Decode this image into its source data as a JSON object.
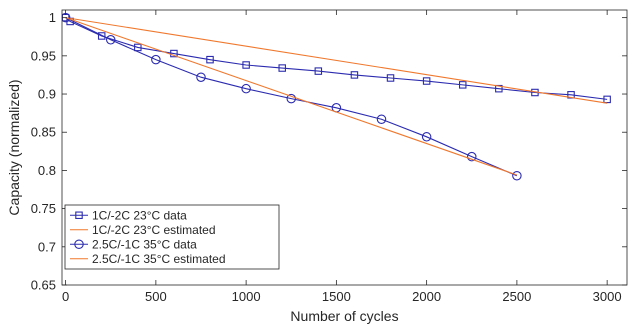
{
  "chart_data": {
    "type": "line",
    "title": "",
    "xlabel": "Number of cycles",
    "ylabel": "Capacity (normalized)",
    "xlim": [
      -20,
      3110
    ],
    "ylim": [
      0.65,
      1.01
    ],
    "xticks": [
      0,
      500,
      1000,
      1500,
      2000,
      2500,
      3000
    ],
    "yticks": [
      0.65,
      0.7,
      0.75,
      0.8,
      0.85,
      0.9,
      0.95,
      1
    ],
    "ytick_labels": [
      "0.65",
      "0.7",
      "0.75",
      "0.8",
      "0.85",
      "0.9",
      "0.95",
      "1"
    ],
    "grid": false,
    "legend_position": "bottom-left",
    "series": [
      {
        "name": "1C/-2C 23°C data",
        "color": "#2b2bb0",
        "marker": "square",
        "x": [
          0,
          25,
          200,
          400,
          600,
          800,
          1000,
          1200,
          1400,
          1600,
          1800,
          2000,
          2200,
          2400,
          2600,
          2800,
          3000
        ],
        "y": [
          1.0,
          0.995,
          0.976,
          0.961,
          0.953,
          0.945,
          0.938,
          0.934,
          0.93,
          0.925,
          0.921,
          0.917,
          0.912,
          0.907,
          0.902,
          0.899,
          0.893
        ]
      },
      {
        "name": "1C/-2C 23°C estimated",
        "color": "#f0782d",
        "marker": "none",
        "x": [
          0,
          3000
        ],
        "y": [
          1.0,
          0.888
        ]
      },
      {
        "name": "2.5C/-1C 35°C data",
        "color": "#2b2bb0",
        "marker": "circle",
        "x": [
          0,
          250,
          500,
          750,
          1000,
          1250,
          1500,
          1750,
          2000,
          2250,
          2500
        ],
        "y": [
          1.0,
          0.971,
          0.945,
          0.922,
          0.907,
          0.894,
          0.882,
          0.867,
          0.844,
          0.818,
          0.793
        ]
      },
      {
        "name": "2.5C/-1C 35°C estimated",
        "color": "#f0782d",
        "marker": "none",
        "x": [
          0,
          2500
        ],
        "y": [
          1.0,
          0.794
        ]
      }
    ]
  }
}
